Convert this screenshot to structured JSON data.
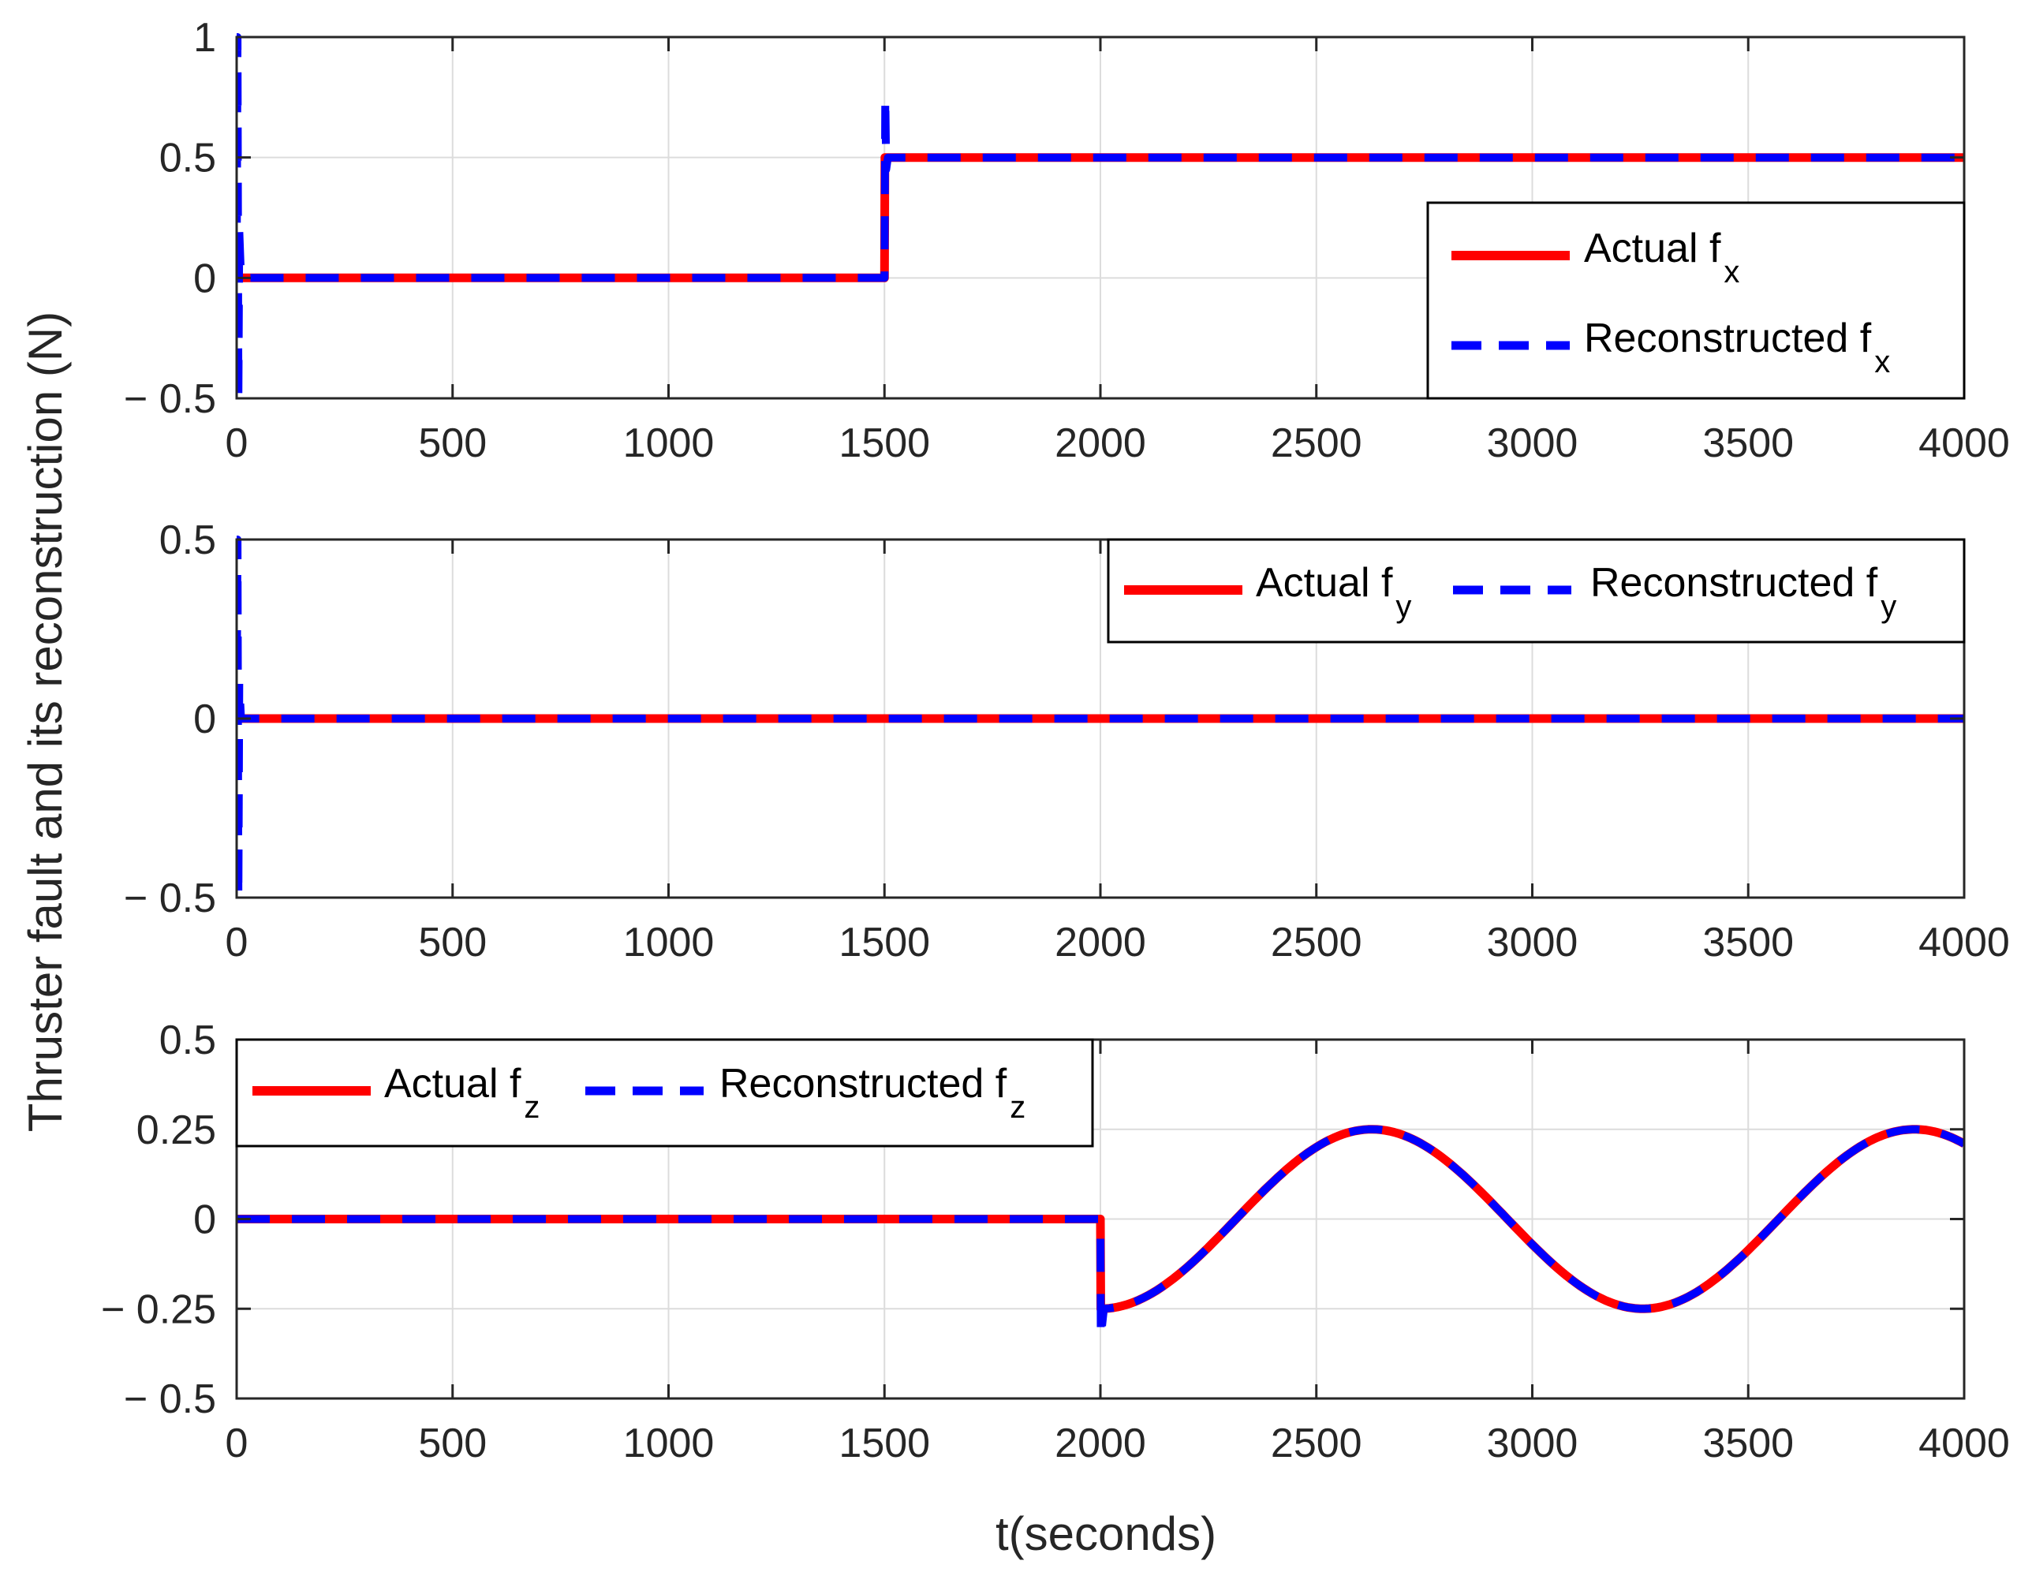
{
  "chart_data": {
    "type": "line",
    "ylabel": "Thruster fault and its reconstruction (N)",
    "xlabel": "t(seconds)",
    "colors": {
      "actual": "#ff0000",
      "reconstructed": "#0000ff",
      "grid": "#dcdcdc",
      "axis": "#262626"
    },
    "panels": [
      {
        "name": "fx",
        "xlim": [
          0,
          4000
        ],
        "ylim": [
          -0.5,
          1
        ],
        "xticks": [
          0,
          500,
          1000,
          1500,
          2000,
          2500,
          3000,
          3500,
          4000
        ],
        "xtick_labels": [
          "0",
          "500",
          "1000",
          "1500",
          "2000",
          "2500",
          "3000",
          "3500",
          "4000"
        ],
        "yticks": [
          -0.5,
          0,
          0.5,
          1
        ],
        "ytick_labels": [
          "− 0.5",
          "0",
          "0.5",
          "1"
        ],
        "legend": {
          "location": "right",
          "entries": [
            {
              "base": "Actual f",
              "sub": "x"
            },
            {
              "base": "Reconstructed f",
              "sub": "x"
            }
          ]
        },
        "series": [
          {
            "name": "Actual f_x",
            "style": "solid",
            "color": "#ff0000",
            "x": [
              0,
              1500,
              1501,
              4000
            ],
            "y": [
              0,
              0,
              0.5,
              0.5
            ]
          },
          {
            "name": "Reconstructed f_x",
            "style": "dashed",
            "color": "#0000ff",
            "x": [
              0,
              2,
              4,
              6,
              10,
              1500,
              1502,
              1504,
              1508,
              4000
            ],
            "y": [
              0,
              1,
              -0.5,
              0.2,
              0,
              0,
              0.75,
              0.45,
              0.5,
              0.5
            ]
          }
        ]
      },
      {
        "name": "fy",
        "xlim": [
          0,
          4000
        ],
        "ylim": [
          -0.5,
          0.5
        ],
        "xticks": [
          0,
          500,
          1000,
          1500,
          2000,
          2500,
          3000,
          3500,
          4000
        ],
        "xtick_labels": [
          "0",
          "500",
          "1000",
          "1500",
          "2000",
          "2500",
          "3000",
          "3500",
          "4000"
        ],
        "yticks": [
          -0.5,
          0,
          0.5
        ],
        "ytick_labels": [
          "− 0.5",
          "0",
          "0.5"
        ],
        "legend": {
          "location": "top-right",
          "entries": [
            {
              "base": "Actual f",
              "sub": "y"
            },
            {
              "base": "Reconstructed f",
              "sub": "y"
            }
          ]
        },
        "series": [
          {
            "name": "Actual f_y",
            "style": "solid",
            "color": "#ff0000",
            "x": [
              0,
              4000
            ],
            "y": [
              0,
              0
            ]
          },
          {
            "name": "Reconstructed f_y",
            "style": "dashed",
            "color": "#0000ff",
            "x": [
              0,
              2,
              4,
              6,
              10,
              4000
            ],
            "y": [
              0,
              0.5,
              -0.5,
              0.1,
              0,
              0
            ]
          }
        ]
      },
      {
        "name": "fz",
        "xlim": [
          0,
          4000
        ],
        "ylim": [
          -0.5,
          0.5
        ],
        "xticks": [
          0,
          500,
          1000,
          1500,
          2000,
          2500,
          3000,
          3500,
          4000
        ],
        "xtick_labels": [
          "0",
          "500",
          "1000",
          "1500",
          "2000",
          "2500",
          "3000",
          "3500",
          "4000"
        ],
        "yticks": [
          -0.5,
          -0.25,
          0,
          0.25,
          0.5
        ],
        "ytick_labels": [
          "− 0.5",
          "− 0.25",
          "0",
          "0.25",
          "0.5"
        ],
        "legend": {
          "location": "top-left",
          "entries": [
            {
              "base": "Actual f",
              "sub": "z"
            },
            {
              "base": "Reconstructed f",
              "sub": "z"
            }
          ]
        },
        "signal": {
          "start": 2000,
          "amplitude": 0.25,
          "period": 1256.6,
          "form": "-0.25*cos(2*pi*(t-2000)/period)"
        },
        "series": [
          {
            "name": "Actual f_z",
            "style": "solid",
            "color": "#ff0000",
            "spike": null
          },
          {
            "name": "Reconstructed f_z",
            "style": "dashed",
            "color": "#0000ff",
            "spike": -0.33
          }
        ]
      }
    ]
  }
}
